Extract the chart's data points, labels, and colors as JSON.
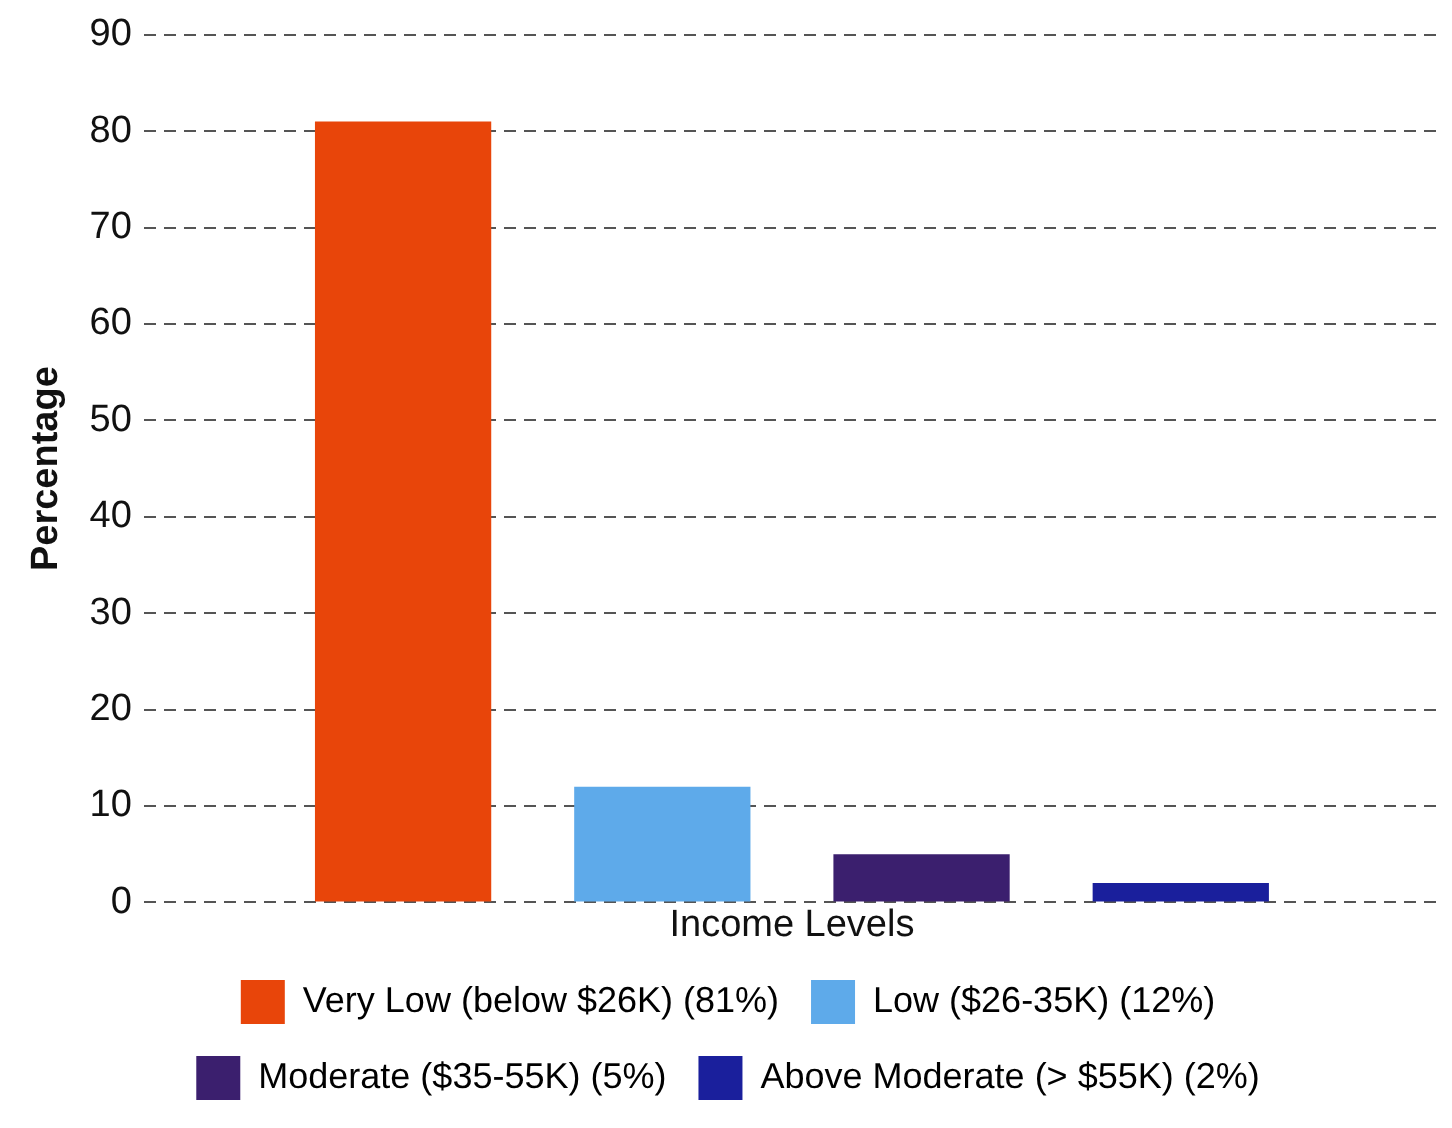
{
  "chart_data": {
    "type": "bar",
    "xlabel": "Income Levels",
    "ylabel": "Percentage",
    "categories": [
      null
    ],
    "series": [
      {
        "name": "Very Low (below $26K) (81%)",
        "color": "#e8450a",
        "values": [
          81
        ]
      },
      {
        "name": "Low ($26-35K) (12%)",
        "color": "#5eaaea",
        "values": [
          12
        ]
      },
      {
        "name": "Moderate ($35-55K) (5%)",
        "color": "#3b1f6e",
        "values": [
          5
        ]
      },
      {
        "name": "Above Moderate (> $55K) (2%)",
        "color": "#1a1f9c",
        "values": [
          2
        ]
      }
    ],
    "ylim": [
      0,
      90
    ],
    "yticks": [
      0,
      10,
      20,
      30,
      40,
      50,
      60,
      70,
      80,
      90
    ],
    "grid": "y",
    "legend": "bottom"
  }
}
